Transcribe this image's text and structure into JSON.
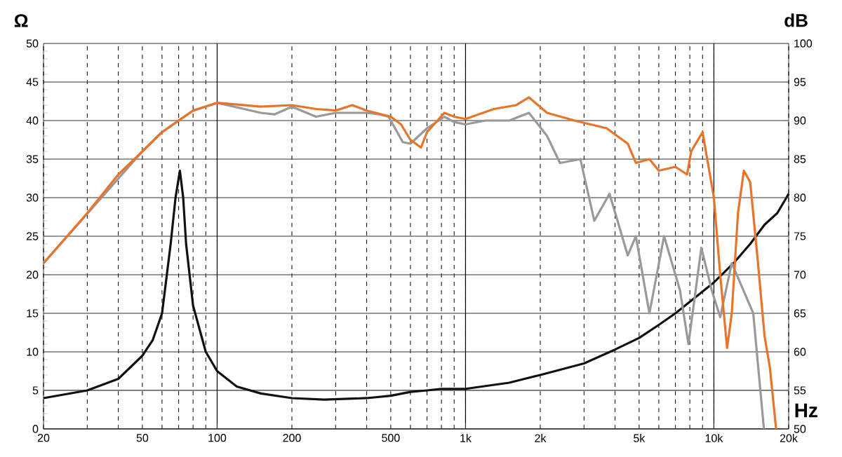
{
  "chart_data": {
    "type": "line",
    "xlabel": "Hz",
    "ylabel": "Ω",
    "y2label": "dB",
    "log": "x",
    "grid": true,
    "marker": "none",
    "line_style": "solid",
    "xlim": [
      20,
      20000
    ],
    "ylim": [
      0,
      50
    ],
    "y2lim": [
      50,
      100
    ],
    "xticks": [
      20,
      50,
      100,
      200,
      500,
      {
        "value": 1000,
        "label": "1k"
      },
      {
        "value": 2000,
        "label": "2k"
      },
      {
        "value": 5000,
        "label": "5k"
      },
      {
        "value": 10000,
        "label": "10k"
      },
      {
        "value": 20000,
        "label": "20k"
      }
    ],
    "yticks": [
      0,
      5,
      10,
      15,
      20,
      25,
      30,
      35,
      40,
      45,
      50
    ],
    "y2ticks": [
      50,
      55,
      60,
      65,
      70,
      75,
      80,
      85,
      90,
      95,
      100
    ],
    "series": [
      {
        "color": "#111111",
        "x": [
          20,
          30,
          40,
          50,
          55,
          60,
          65,
          68,
          70.8,
          73,
          75,
          80,
          90,
          100,
          120,
          150,
          200,
          270,
          400,
          500,
          600,
          700,
          800,
          1000,
          1500,
          2000,
          3000,
          4000,
          5000,
          6000,
          7000,
          8000,
          10000,
          12000,
          14000,
          16000,
          18000,
          20000
        ],
        "values": [
          4,
          5,
          6.5,
          9.5,
          11.5,
          15,
          24,
          30,
          33.5,
          30,
          24,
          16,
          10,
          7.5,
          5.5,
          4.6,
          4,
          3.8,
          4,
          4.3,
          4.8,
          5,
          5.2,
          5.2,
          6,
          7,
          8.5,
          10.3,
          11.8,
          13.5,
          15,
          16.5,
          19,
          21.5,
          24,
          26.5,
          28,
          30.5
        ]
      },
      {
        "color": "#999999",
        "axis": "y2",
        "x": [
          20,
          30,
          40,
          50,
          60,
          70,
          80,
          100,
          150,
          170,
          200,
          250,
          300,
          400,
          450,
          490,
          559,
          600,
          700,
          822,
          900,
          1000,
          1200,
          1500,
          1800,
          2130,
          2400,
          2900,
          3300,
          3800,
          4500,
          4850,
          5500,
          6300,
          7300,
          7900,
          8900,
          9800,
          10600,
          11800,
          14400,
          15900
        ],
        "values": [
          71.5,
          null,
          null,
          86,
          88.5,
          90,
          91.3,
          92.3,
          91,
          90.8,
          91.8,
          90.5,
          91,
          91,
          90.8,
          90.5,
          87.2,
          87,
          89,
          90.5,
          89.8,
          89.5,
          90,
          90,
          91,
          88,
          84.5,
          85,
          77,
          80.5,
          72.5,
          75,
          65,
          75,
          68,
          61,
          73.5,
          68,
          64.5,
          71.5,
          65,
          50
        ]
      },
      {
        "color": "#e8742a",
        "axis": "y2",
        "x": [
          20,
          30,
          40,
          50,
          60,
          70,
          80,
          100,
          150,
          200,
          250,
          300,
          350,
          400,
          500,
          550,
          600,
          662,
          700,
          822,
          900,
          1000,
          1300,
          1600,
          1800,
          2130,
          2750,
          3700,
          4500,
          4850,
          5500,
          6000,
          7000,
          7800,
          8100,
          9000,
          10000,
          10600,
          11300,
          11800,
          12500,
          13200,
          14000,
          15000,
          16000,
          16800,
          17800
        ],
        "values": [
          71.5,
          78,
          83,
          86,
          88.5,
          90,
          91.3,
          92.3,
          91.8,
          92,
          91.5,
          91.3,
          92,
          91.3,
          90.5,
          89.5,
          87.5,
          86.5,
          88.5,
          91,
          90.5,
          90.2,
          91.5,
          92,
          93,
          91,
          90,
          89,
          87,
          84.5,
          85,
          83.5,
          84,
          83,
          86,
          88.5,
          80,
          70,
          60.5,
          65,
          78,
          83.5,
          82,
          72,
          62,
          58,
          50
        ]
      }
    ]
  }
}
